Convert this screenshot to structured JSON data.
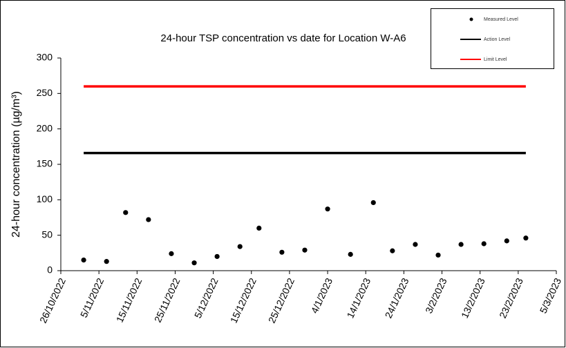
{
  "chart_data": {
    "type": "scatter",
    "title": "24-hour TSP concentration vs date for Location W-A6",
    "y_label": "24-hour concentration (µg/m³)",
    "xlim": [
      "2022-10-26",
      "2023-03-05"
    ],
    "xticks": [
      {
        "value": "2022-10-26",
        "label": "26/10/2022"
      },
      {
        "value": "2022-11-05",
        "label": "5/11/2022"
      },
      {
        "value": "2022-11-15",
        "label": "15/11/2022"
      },
      {
        "value": "2022-11-25",
        "label": "25/11/2022"
      },
      {
        "value": "2022-12-05",
        "label": "5/12/2022"
      },
      {
        "value": "2022-12-15",
        "label": "15/12/2022"
      },
      {
        "value": "2022-12-25",
        "label": "25/12/2022"
      },
      {
        "value": "2023-01-04",
        "label": "4/1/2023"
      },
      {
        "value": "2023-01-14",
        "label": "14/1/2023"
      },
      {
        "value": "2023-01-24",
        "label": "24/1/2023"
      },
      {
        "value": "2023-02-03",
        "label": "3/2/2023"
      },
      {
        "value": "2023-02-13",
        "label": "13/2/2023"
      },
      {
        "value": "2023-02-23",
        "label": "23/2/2023"
      },
      {
        "value": "2023-03-05",
        "label": "5/3/2023"
      }
    ],
    "ylim": [
      0,
      300
    ],
    "yticks": [
      0,
      50,
      100,
      150,
      200,
      250,
      300
    ],
    "grid": false,
    "legend": "top-right",
    "series": [
      {
        "name": "Measured Level",
        "color": "#000000",
        "style": "marker",
        "x": [
          "2022-11-01",
          "2022-11-07",
          "2022-11-12",
          "2022-11-18",
          "2022-11-24",
          "2022-11-30",
          "2022-12-06",
          "2022-12-12",
          "2022-12-17",
          "2022-12-23",
          "2022-12-29",
          "2023-01-04",
          "2023-01-10",
          "2023-01-16",
          "2023-01-21",
          "2023-01-27",
          "2023-02-02",
          "2023-02-08",
          "2023-02-14",
          "2023-02-20",
          "2023-02-25"
        ],
        "values": [
          15,
          13,
          82,
          72,
          24,
          11,
          20,
          34,
          60,
          26,
          29,
          87,
          23,
          96,
          28,
          37,
          22,
          37,
          38,
          42,
          46
        ]
      },
      {
        "name": "Action Level",
        "color": "#000000",
        "style": "line",
        "x": [
          "2022-11-01",
          "2023-02-25"
        ],
        "values": [
          166,
          166
        ]
      },
      {
        "name": "Limit Level",
        "color": "#ff0000",
        "style": "line",
        "x": [
          "2022-11-01",
          "2023-02-25"
        ],
        "values": [
          260,
          260
        ]
      }
    ]
  }
}
